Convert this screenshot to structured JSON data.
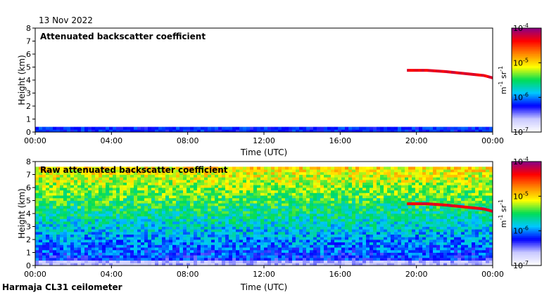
{
  "date_label": "13 Nov 2022",
  "footer": "Harmaja CL31 ceilometer",
  "chart_data": [
    {
      "type": "heatmap",
      "title": "Attenuated backscatter coefficient",
      "xlabel": "Time (UTC)",
      "ylabel": "Height (km)",
      "xticks": [
        "00:00",
        "04:00",
        "08:00",
        "12:00",
        "16:00",
        "20:00",
        "00:00"
      ],
      "xlim_hours": [
        0,
        24
      ],
      "yticks": [
        "0",
        "1",
        "2",
        "3",
        "4",
        "5",
        "6",
        "7",
        "8"
      ],
      "ylim": [
        0,
        8
      ],
      "colorbar": {
        "unit_base": "m",
        "unit_exp": "-1",
        "unit_base2": "sr",
        "unit_exp2": "-1",
        "ticks": [
          {
            "base": "10",
            "exp": "-4"
          },
          {
            "base": "10",
            "exp": "-5"
          },
          {
            "base": "10",
            "exp": "-6"
          },
          {
            "base": "10",
            "exp": "-7"
          }
        ],
        "range_log10": [
          -7,
          -4
        ]
      },
      "features": {
        "surface_layer": {
          "hours": [
            0,
            24
          ],
          "top_km": 0.4,
          "log_level": -6.2
        },
        "elevated_layer": {
          "hours": [
            19.5,
            24
          ],
          "height_km": [
            [
              19.5,
              4.75
            ],
            [
              20.5,
              4.75
            ],
            [
              21.5,
              4.65
            ],
            [
              22.5,
              4.5
            ],
            [
              23.5,
              4.35
            ],
            [
              24,
              4.15
            ]
          ],
          "log_level": -4.3
        }
      },
      "colors": [
        "#ffffff",
        "#c8c8ff",
        "#0000ff",
        "#00c8ff",
        "#00dd55",
        "#ffff00",
        "#ff8800",
        "#ff0000",
        "#880088"
      ]
    },
    {
      "type": "heatmap",
      "title": "Raw attenuated backscatter coefficient",
      "xlabel": "Time (UTC)",
      "ylabel": "Height (km)",
      "xticks": [
        "00:00",
        "04:00",
        "08:00",
        "12:00",
        "16:00",
        "20:00",
        "00:00"
      ],
      "xlim_hours": [
        0,
        24
      ],
      "yticks": [
        "0",
        "1",
        "2",
        "3",
        "4",
        "5",
        "6",
        "7",
        "8"
      ],
      "ylim": [
        0,
        8
      ],
      "colorbar": {
        "unit_base": "m",
        "unit_exp": "-1",
        "unit_base2": "sr",
        "unit_exp2": "-1",
        "ticks": [
          {
            "base": "10",
            "exp": "-4"
          },
          {
            "base": "10",
            "exp": "-5"
          },
          {
            "base": "10",
            "exp": "-6"
          },
          {
            "base": "10",
            "exp": "-7"
          }
        ],
        "range_log10": [
          -7,
          -4
        ]
      },
      "features": {
        "noise_gradient": {
          "bottom_log_level": -6.3,
          "top_log_level": -5.0,
          "data_top_km": 7.7
        },
        "surface_layer": {
          "hours": [
            0,
            24
          ],
          "top_km": 0.4,
          "log_level": -6.6
        },
        "elevated_layer": {
          "hours": [
            19.5,
            24
          ],
          "height_km": [
            [
              19.5,
              4.75
            ],
            [
              20.5,
              4.75
            ],
            [
              21.5,
              4.65
            ],
            [
              22.5,
              4.5
            ],
            [
              23.5,
              4.35
            ],
            [
              24,
              4.15
            ]
          ],
          "log_level": -4.3
        }
      },
      "colors": [
        "#ffffff",
        "#c8c8ff",
        "#0000ff",
        "#00c8ff",
        "#00dd55",
        "#ffff00",
        "#ff8800",
        "#ff0000",
        "#880088"
      ]
    }
  ]
}
